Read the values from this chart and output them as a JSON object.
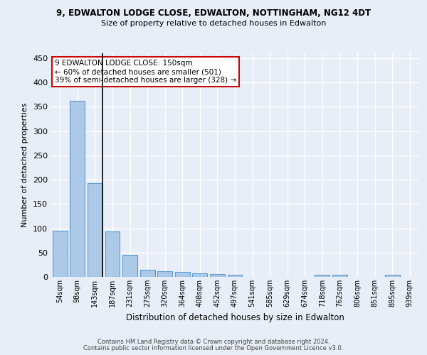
{
  "title1": "9, EDWALTON LODGE CLOSE, EDWALTON, NOTTINGHAM, NG12 4DT",
  "title2": "Size of property relative to detached houses in Edwalton",
  "xlabel": "Distribution of detached houses by size in Edwalton",
  "ylabel": "Number of detached properties",
  "categories": [
    "54sqm",
    "98sqm",
    "143sqm",
    "187sqm",
    "231sqm",
    "275sqm",
    "320sqm",
    "364sqm",
    "408sqm",
    "452sqm",
    "497sqm",
    "541sqm",
    "585sqm",
    "629sqm",
    "674sqm",
    "718sqm",
    "762sqm",
    "806sqm",
    "851sqm",
    "895sqm",
    "939sqm"
  ],
  "values": [
    95,
    362,
    193,
    93,
    45,
    15,
    11,
    10,
    7,
    6,
    4,
    0,
    0,
    0,
    0,
    5,
    5,
    0,
    0,
    4,
    0
  ],
  "bar_color": "#adc9e8",
  "bar_edge_color": "#5b9bd5",
  "bg_color": "#e8eef7",
  "grid_color": "#ffffff",
  "vline_color": "#000000",
  "annotation_text": "9 EDWALTON LODGE CLOSE: 150sqm\n← 60% of detached houses are smaller (501)\n39% of semi-detached houses are larger (328) →",
  "annotation_box_color": "#ffffff",
  "annotation_box_edge": "#cc0000",
  "footer1": "Contains HM Land Registry data © Crown copyright and database right 2024.",
  "footer2": "Contains public sector information licensed under the Open Government Licence v3.0.",
  "ylim": [
    0,
    460
  ],
  "yticks": [
    0,
    50,
    100,
    150,
    200,
    250,
    300,
    350,
    400,
    450
  ]
}
